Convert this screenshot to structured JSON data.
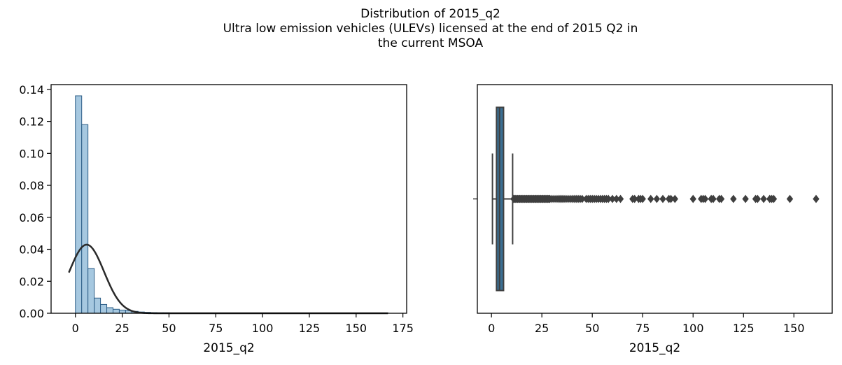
{
  "figure": {
    "title_lines": [
      "Distribution of 2015_q2",
      "Ultra low emission vehicles (ULEVs) licensed at the end of 2015 Q2 in",
      "the current MSOA"
    ]
  },
  "colors": {
    "hist_fill": "#a6c8e0",
    "hist_edge": "#2b5c86",
    "kde_line": "#2a2a2a",
    "box_fill": "#3b6f93",
    "box_edge": "#3f3f3f",
    "outlier": "#3f3f3f",
    "axis": "#000000"
  },
  "chart_data": [
    {
      "type": "bar",
      "subtype": "histogram_with_kde",
      "xlabel": "2015_q2",
      "ylabel": "",
      "xlim": [
        -13,
        177
      ],
      "ylim": [
        0,
        0.143
      ],
      "xticks": [
        0,
        25,
        50,
        75,
        100,
        125,
        150,
        175
      ],
      "yticks": [
        0.0,
        0.02,
        0.04,
        0.06,
        0.08,
        0.1,
        0.12,
        0.14
      ],
      "ytick_labels": [
        "0.00",
        "0.02",
        "0.04",
        "0.06",
        "0.08",
        "0.10",
        "0.12",
        "0.14"
      ],
      "bin_width": 3.35,
      "bins_start": 0,
      "bin_density": [
        0.136,
        0.118,
        0.028,
        0.0095,
        0.0055,
        0.0035,
        0.0025,
        0.002,
        0.0017,
        0.0012,
        0.0008,
        0.0006,
        0.0004,
        0.0003,
        0.0003,
        0.0002,
        0.0002,
        0.0002,
        0.0001,
        0.0001,
        0.0001,
        0.0001,
        0.0001,
        0.0001,
        0.0001,
        0.0001,
        0.0001,
        0.0001,
        0.0001,
        0.0001,
        0.0001,
        0.0001,
        0.0001,
        0.0001,
        0.0001,
        0.0001,
        0.0001,
        0.0001,
        0.0001,
        0.0001,
        0.0001,
        0.0001,
        0.0001,
        0.0001,
        0.0001,
        0.0001,
        0.0001,
        0.0001,
        0.0001,
        0.0001
      ],
      "kde_normal": {
        "mean": 6.0,
        "sd": 9.3,
        "x_range": [
          -3.5,
          167
        ]
      }
    },
    {
      "type": "box",
      "xlabel": "2015_q2",
      "ylabel": "",
      "xlim": [
        -7,
        169
      ],
      "xticks": [
        0,
        25,
        50,
        75,
        100,
        125,
        150
      ],
      "whisker_low": 0.5,
      "q1": 2.5,
      "median": 4.0,
      "q3": 6.0,
      "whisker_high": 10.5,
      "outliers": [
        11,
        11.5,
        12,
        12.5,
        13,
        13.5,
        14,
        14.5,
        15,
        15.5,
        16,
        16.5,
        17,
        17.5,
        18,
        18.5,
        19,
        19.5,
        20,
        20.5,
        21,
        21.5,
        22,
        22.5,
        23,
        23.5,
        24,
        24.5,
        25,
        25.5,
        26,
        26.5,
        27,
        27.5,
        28,
        28.5,
        29,
        30,
        31,
        32,
        33,
        34,
        35,
        36,
        37,
        38,
        39,
        40,
        41,
        42,
        43,
        44,
        45,
        47,
        48,
        49,
        50,
        51,
        52,
        53,
        54,
        55,
        56,
        57,
        58,
        60,
        62,
        64,
        70,
        71,
        73,
        74,
        75,
        79,
        82,
        85,
        88,
        89,
        91,
        100,
        104,
        105,
        106,
        109,
        110,
        113,
        114,
        120,
        126,
        131,
        132,
        135,
        138,
        139,
        140,
        148,
        161
      ]
    }
  ]
}
